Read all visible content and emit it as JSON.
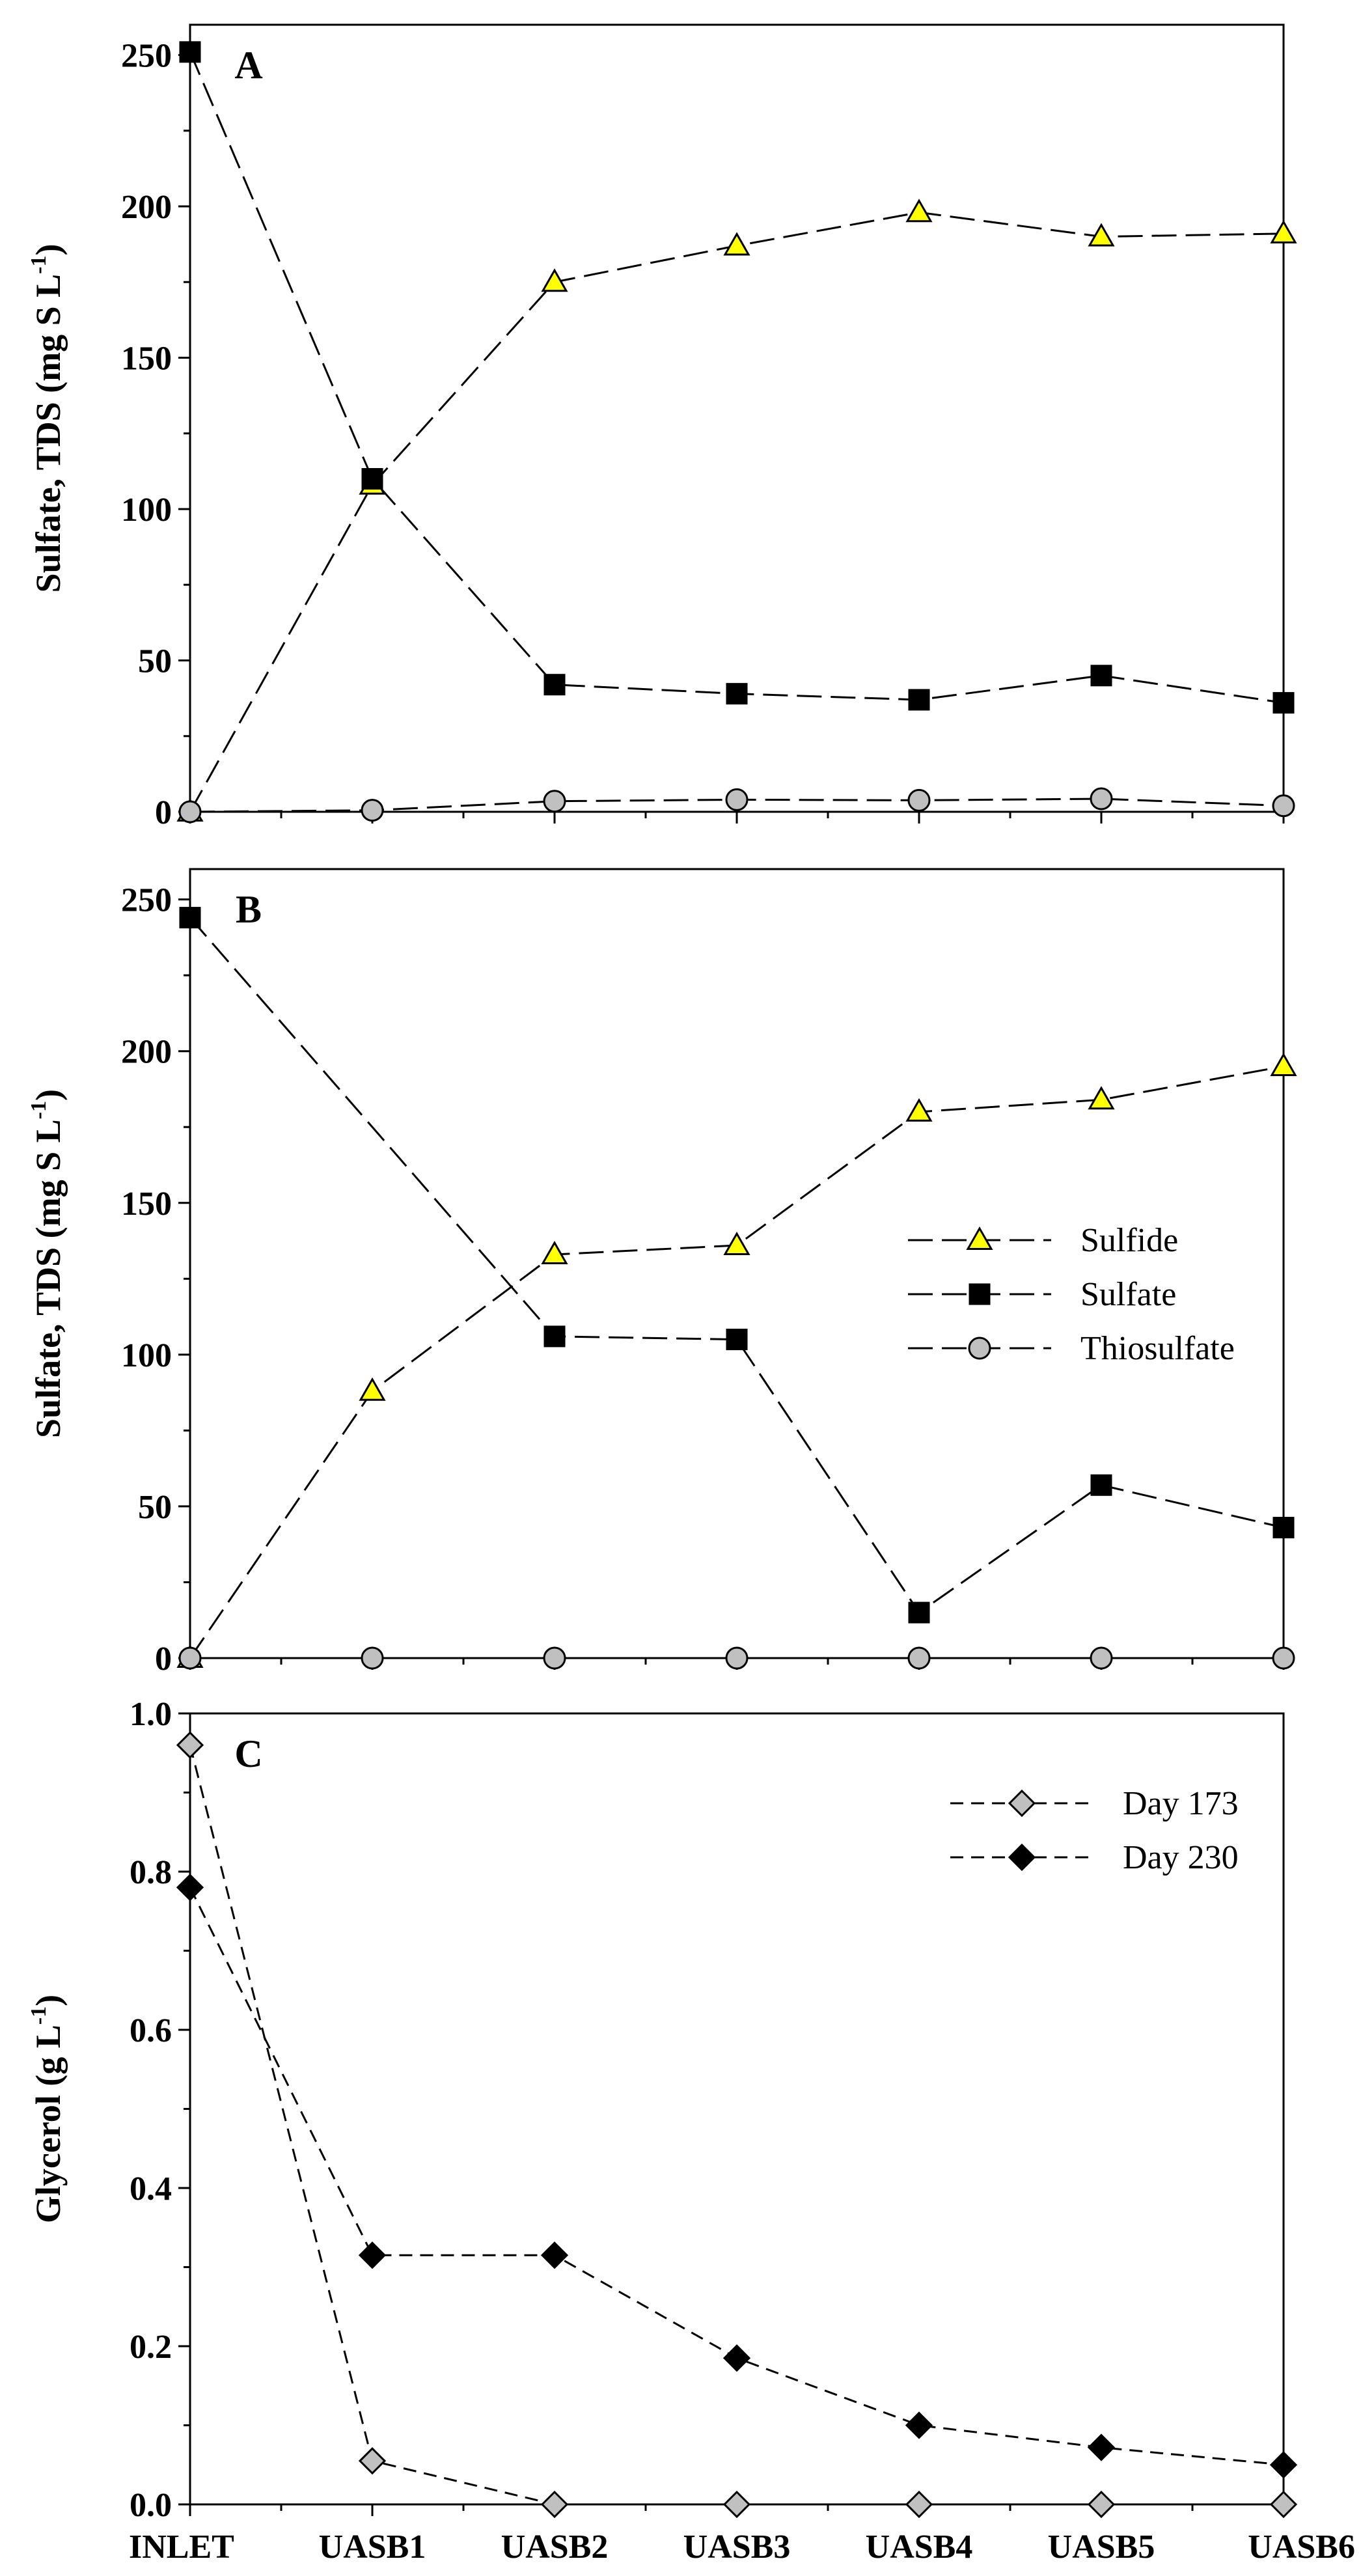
{
  "chart_data": [
    {
      "type": "line",
      "panel": "A",
      "categories": [
        "INLET",
        "UASB1",
        "UASB2",
        "UASB3",
        "UASB4",
        "UASB5",
        "UASB6"
      ],
      "ylabel": "Sulfate, TDS (mg S L",
      "ylabel_sup": "-1",
      "ylabel_close": ")",
      "ylim": [
        0,
        260
      ],
      "yticks": [
        0,
        50,
        100,
        150,
        200,
        250
      ],
      "series": [
        {
          "name": "Sulfide",
          "marker": "triangle",
          "color": "#ffff00",
          "dash": "long",
          "values": [
            0,
            108,
            175,
            187,
            198,
            190,
            191
          ]
        },
        {
          "name": "Sulfate",
          "marker": "square",
          "color": "#000000",
          "dash": "long",
          "values": [
            251,
            110,
            42,
            39,
            37,
            45,
            36
          ]
        },
        {
          "name": "Thiosulfate",
          "marker": "circle",
          "color": "#c0c0c0",
          "dash": "long",
          "values": [
            0,
            0.5,
            3.5,
            4,
            3.8,
            4.3,
            2
          ]
        }
      ]
    },
    {
      "type": "line",
      "panel": "B",
      "categories": [
        "INLET",
        "UASB1",
        "UASB2",
        "UASB3",
        "UASB4",
        "UASB5",
        "UASB6"
      ],
      "ylabel": "Sulfate, TDS (mg S L",
      "ylabel_sup": "-1",
      "ylabel_close": ")",
      "ylim": [
        0,
        260
      ],
      "yticks": [
        0,
        50,
        100,
        150,
        200,
        250
      ],
      "legend": [
        "Sulfide",
        "Sulfate",
        "Thiosulfate"
      ],
      "series": [
        {
          "name": "Sulfide",
          "marker": "triangle",
          "color": "#ffff00",
          "dash": "long",
          "values": [
            0,
            88,
            133,
            136,
            180,
            184,
            195
          ]
        },
        {
          "name": "Sulfate",
          "marker": "square",
          "color": "#000000",
          "dash": "long",
          "values": [
            244,
            null,
            106,
            105,
            15,
            57,
            43
          ]
        },
        {
          "name": "Thiosulfate",
          "marker": "circle",
          "color": "#c0c0c0",
          "dash": "long",
          "values": [
            0,
            0,
            0,
            0,
            0,
            0,
            0
          ]
        }
      ]
    },
    {
      "type": "line",
      "panel": "C",
      "categories": [
        "INLET",
        "UASB1",
        "UASB2",
        "UASB3",
        "UASB4",
        "UASB5",
        "UASB6"
      ],
      "ylabel": "Glycerol (g L",
      "ylabel_sup": "-1",
      "ylabel_close": ")",
      "ylim": [
        0,
        1.0
      ],
      "yticks": [
        "0.0",
        "0.2",
        "0.4",
        "0.6",
        "0.8",
        "1.0"
      ],
      "legend": [
        "Day 173",
        "Day 230"
      ],
      "series": [
        {
          "name": "Day 173",
          "marker": "diamond",
          "color": "#c0c0c0",
          "dash": "short",
          "values": [
            0.96,
            0.055,
            0,
            0,
            0,
            0,
            0
          ]
        },
        {
          "name": "Day 230",
          "marker": "diamond",
          "color": "#000000",
          "dash": "short",
          "values": [
            0.78,
            0.315,
            0.315,
            0.185,
            0.1,
            0.072,
            0.05
          ]
        }
      ]
    }
  ]
}
